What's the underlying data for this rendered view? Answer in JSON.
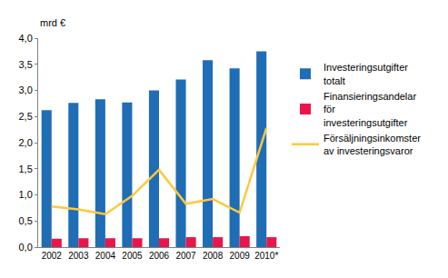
{
  "chart_data": {
    "type": "bar",
    "y_label": "mrd €",
    "categories": [
      "2002",
      "2003",
      "2004",
      "2005",
      "2006",
      "2007",
      "2008",
      "2009",
      "2010*"
    ],
    "series": [
      {
        "name": "Investeringsutgifter totalt",
        "type": "bar",
        "color": "#1f6db5",
        "values": [
          2.62,
          2.76,
          2.83,
          2.77,
          3.0,
          3.21,
          3.58,
          3.42,
          3.75
        ]
      },
      {
        "name": "Finansieringsandelar för investeringsutgifter",
        "type": "bar",
        "color": "#e8174b",
        "values": [
          0.16,
          0.17,
          0.17,
          0.17,
          0.17,
          0.19,
          0.19,
          0.21,
          0.19
        ]
      },
      {
        "name": "Försäljningsinkomster av investeringsvaror",
        "type": "line",
        "color": "#ffc93c",
        "values": [
          0.78,
          0.72,
          0.63,
          0.98,
          1.48,
          0.83,
          0.92,
          0.66,
          2.28
        ]
      }
    ],
    "ylim": [
      0,
      4
    ],
    "yticks": [
      {
        "value": 0,
        "label": "0,0"
      },
      {
        "value": 0.5,
        "label": "0,5"
      },
      {
        "value": 1,
        "label": "1,0"
      },
      {
        "value": 1.5,
        "label": "1,5"
      },
      {
        "value": 2,
        "label": "2,0"
      },
      {
        "value": 2.5,
        "label": "2,5"
      },
      {
        "value": 3,
        "label": "3,0"
      },
      {
        "value": 3.5,
        "label": "3,5"
      },
      {
        "value": 4,
        "label": "4,0"
      }
    ],
    "grid": false,
    "legend": "right"
  }
}
